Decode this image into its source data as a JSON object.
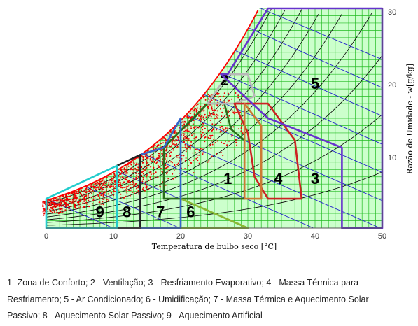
{
  "chart_data": {
    "type": "psychrometric",
    "xlabel": "Temperatura de bulbo seco [°C]",
    "ylabel": "Razão de Umidade - w[g/kg]",
    "xlim": [
      0,
      50
    ],
    "ylim": [
      0,
      30
    ],
    "x_ticks": [
      "0",
      "10",
      "20",
      "30",
      "40",
      "50"
    ],
    "y_ticks": [
      "10",
      "20",
      "30"
    ],
    "grid": true,
    "colors": {
      "grid": "#22bb22",
      "fill": "#ccffcc",
      "saturation_curve": "#ff0000",
      "data_points": "#ee0000",
      "rh_curves": "#000000",
      "enthalpy_lines": "#2222cc"
    },
    "zones": [
      {
        "id": "1",
        "label": "1",
        "color": "#2a6e1a",
        "polygon": [
          [
            17.5,
            4
          ],
          [
            21.5,
            4
          ],
          [
            29.5,
            4
          ],
          [
            29.5,
            12
          ],
          [
            27.5,
            13.5
          ],
          [
            26.5,
            17
          ],
          [
            24,
            17
          ],
          [
            17.5,
            11
          ]
        ],
        "label_at": [
          27,
          6
        ]
      },
      {
        "id": "2",
        "label": "2",
        "color": "#b8b8b8",
        "polygon": [
          [
            24,
            17
          ],
          [
            27,
            21
          ],
          [
            30,
            21
          ],
          [
            31,
            18
          ],
          [
            28,
            17
          ]
        ],
        "label_at": [
          26.5,
          19.5
        ]
      },
      {
        "id": "3",
        "label": "3",
        "color": "#cc2222",
        "polygon": [
          [
            28,
            17
          ],
          [
            33,
            17
          ],
          [
            37,
            12
          ],
          [
            38,
            4
          ],
          [
            33,
            4
          ],
          [
            31,
            7
          ],
          [
            30,
            13
          ]
        ],
        "label_at": [
          40,
          6
        ]
      },
      {
        "id": "4",
        "label": "4",
        "color": "#cc7a33",
        "polygon": [
          [
            29.5,
            4
          ],
          [
            32,
            4
          ],
          [
            32,
            14
          ],
          [
            29.5,
            17
          ]
        ],
        "label_at": [
          34.5,
          6
        ]
      },
      {
        "id": "5",
        "label": "5",
        "color": "#6633cc",
        "polygon": [
          [
            26,
            21
          ],
          [
            27,
            21
          ],
          [
            33,
            30
          ],
          [
            50,
            30
          ],
          [
            50,
            0
          ],
          [
            44,
            0
          ],
          [
            44,
            11
          ],
          [
            33,
            15
          ]
        ],
        "label_at": [
          40,
          19
        ]
      },
      {
        "id": "6",
        "label": "6",
        "color": "#8ab832",
        "polygon": [
          [
            20,
            0
          ],
          [
            20,
            4
          ],
          [
            30,
            0
          ]
        ],
        "label_at": [
          21.5,
          1.5
        ]
      },
      {
        "id": "7",
        "label": "7",
        "color": "#3366cc",
        "polygon": [
          [
            14,
            0
          ],
          [
            20,
            0
          ],
          [
            20,
            15
          ],
          [
            17.5,
            11
          ],
          [
            14,
            10
          ]
        ],
        "label_at": [
          17,
          1.5
        ]
      },
      {
        "id": "8",
        "label": "8",
        "color": "#222222",
        "polygon": [
          [
            10.5,
            0
          ],
          [
            14,
            0
          ],
          [
            14,
            10
          ],
          [
            10.5,
            8.5
          ]
        ],
        "label_at": [
          12,
          1.5
        ]
      },
      {
        "id": "9",
        "label": "9",
        "color": "#22cccc",
        "polygon": [
          [
            0,
            0
          ],
          [
            10.5,
            0
          ],
          [
            10.5,
            8.5
          ],
          [
            0,
            4
          ]
        ],
        "label_at": [
          8,
          1.5
        ]
      }
    ]
  },
  "caption": {
    "line1": "1- Zona de Conforto; 2 - Ventilação; 3 - Resfriamento Evaporativo; 4 - Massa Térmica para",
    "line2": "Resfriamento; 5 - Ar Condicionado; 6 - Umidificação; 7 - Massa Térmica e Aquecimento Solar",
    "line3": "Passivo; 8 - Aquecimento Solar Passivo; 9 - Aquecimento Artificial"
  }
}
